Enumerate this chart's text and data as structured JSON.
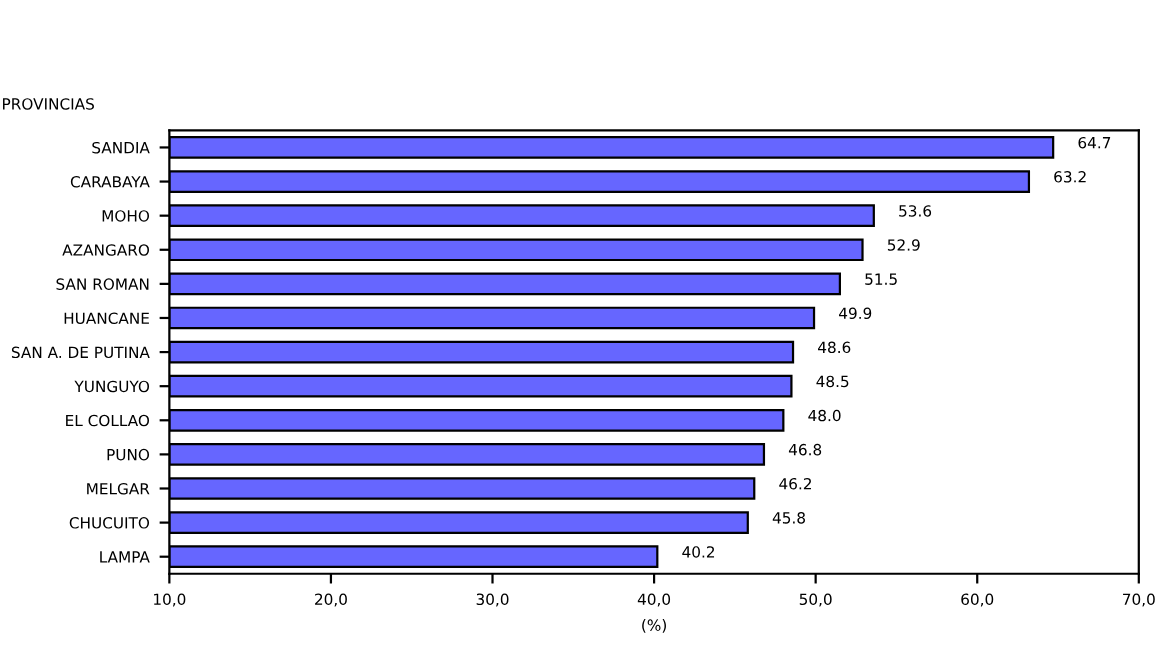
{
  "chart_data": {
    "type": "bar",
    "orientation": "horizontal",
    "ylabel": "PROVINCIAS",
    "xlabel": "(%)",
    "categories": [
      "SANDIA",
      "CARABAYA",
      "MOHO",
      "AZANGARO",
      "SAN ROMAN",
      "HUANCANE",
      "SAN A. DE PUTINA",
      "YUNGUYO",
      "EL COLLAO",
      "PUNO",
      "MELGAR",
      "CHUCUITO",
      "LAMPA"
    ],
    "values": [
      64.7,
      63.2,
      53.6,
      52.9,
      51.5,
      49.9,
      48.6,
      48.5,
      48.0,
      46.8,
      46.2,
      45.8,
      40.2
    ],
    "value_labels": [
      "64.7",
      "63.2",
      "53.6",
      "52.9",
      "51.5",
      "49.9",
      "48.6",
      "48.5",
      "48.0",
      "46.8",
      "46.2",
      "45.8",
      "40.2"
    ],
    "color": "#6666ff",
    "xlim": [
      10,
      70
    ],
    "xticks": [
      {
        "value": 10,
        "label": "10,0"
      },
      {
        "value": 20,
        "label": "20,0"
      },
      {
        "value": 30,
        "label": "30,0"
      },
      {
        "value": 40,
        "label": "40,0"
      },
      {
        "value": 50,
        "label": "50,0"
      },
      {
        "value": 60,
        "label": "60,0"
      },
      {
        "value": 70,
        "label": "70,0"
      }
    ]
  }
}
